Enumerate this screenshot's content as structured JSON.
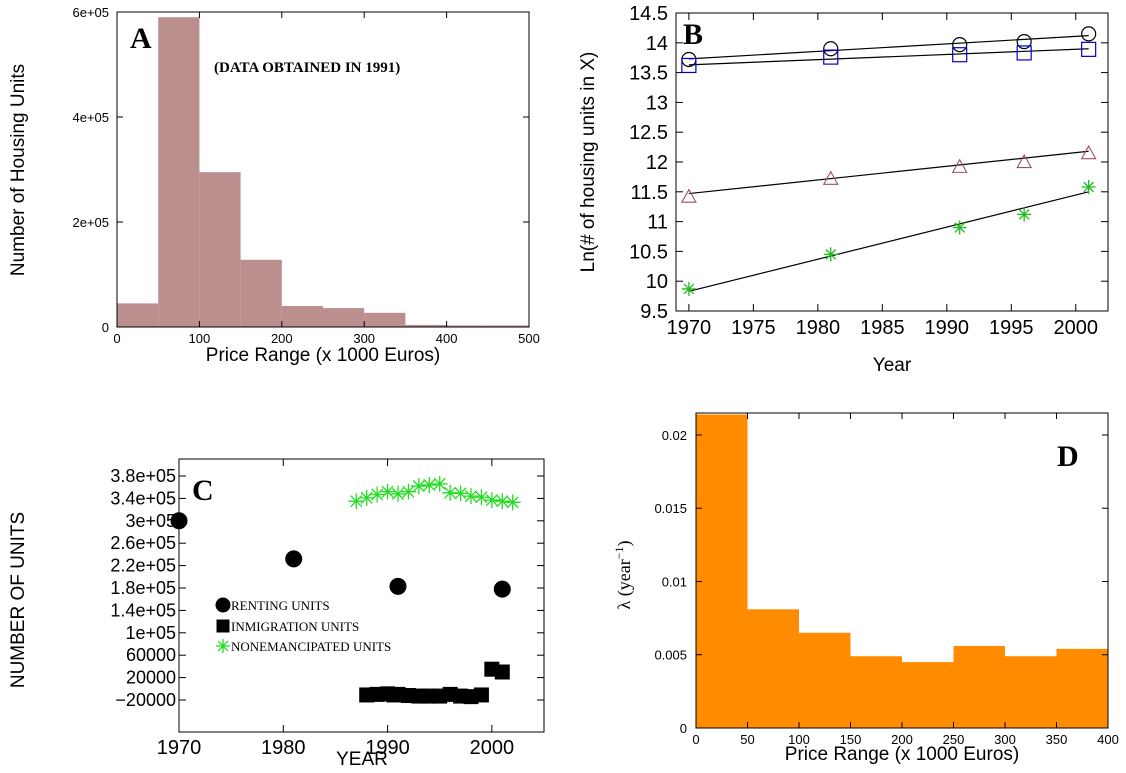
{
  "figure": {
    "panel_labels": [
      "A",
      "B",
      "C",
      "D"
    ]
  },
  "chart_data": [
    {
      "panel": "A",
      "type": "bar",
      "annotation": "(DATA OBTAINED IN 1991)",
      "xlabel": "Price Range (x 1000 Euros)",
      "ylabel": "Number of Housing Units",
      "xlim": [
        0,
        500
      ],
      "ylim": [
        0,
        600000
      ],
      "xticks": [
        "0",
        "100",
        "200",
        "300",
        "400",
        "500"
      ],
      "yticks": [
        "0",
        "2e+05",
        "4e+05",
        "6e+05"
      ],
      "bin_edges": [
        0,
        50,
        100,
        150,
        200,
        250,
        300,
        350,
        400,
        450,
        500
      ],
      "values": [
        45000,
        590000,
        295000,
        128000,
        40000,
        36000,
        27000,
        4000,
        3000,
        3000
      ],
      "color": "#bc8f8f"
    },
    {
      "panel": "B",
      "type": "scatter",
      "xlabel": "Year",
      "ylabel": "Ln(# of housing units in X)",
      "xlim": [
        1969,
        2002.5
      ],
      "ylim": [
        9.5,
        14.5
      ],
      "xticks": [
        "1970",
        "1975",
        "1980",
        "1985",
        "1990",
        "1995",
        "2000"
      ],
      "yticks": [
        "9.5",
        "10",
        "10.5",
        "11",
        "11.5",
        "12",
        "12.5",
        "13",
        "13.5",
        "14",
        "14.5"
      ],
      "series": [
        {
          "marker": "circle",
          "color": "#000000",
          "x": [
            1970,
            1981,
            1991,
            1996,
            2001
          ],
          "y": [
            13.72,
            13.9,
            13.97,
            14.02,
            14.15
          ],
          "fit": [
            [
              1970,
              13.73
            ],
            [
              2001,
              14.12
            ]
          ]
        },
        {
          "marker": "square",
          "color": "#0000cc",
          "x": [
            1970,
            1981,
            1991,
            1996,
            2001
          ],
          "y": [
            13.62,
            13.76,
            13.8,
            13.83,
            13.89
          ],
          "fit": [
            [
              1970,
              13.63
            ],
            [
              2001,
              13.9
            ]
          ]
        },
        {
          "marker": "triangle",
          "color": "#a0505a",
          "x": [
            1970,
            1981,
            1991,
            1996,
            2001
          ],
          "y": [
            11.42,
            11.72,
            11.92,
            12.0,
            12.15
          ],
          "fit": [
            [
              1970,
              11.47
            ],
            [
              2001,
              12.18
            ]
          ]
        },
        {
          "marker": "star",
          "color": "#22bb22",
          "x": [
            1970,
            1981,
            1991,
            1996,
            2001
          ],
          "y": [
            9.87,
            10.45,
            10.9,
            11.12,
            11.58
          ],
          "fit": [
            [
              1970,
              9.83
            ],
            [
              2001,
              11.5
            ]
          ]
        }
      ]
    },
    {
      "panel": "C",
      "type": "scatter",
      "xlabel": "YEAR",
      "ylabel": "NUMBER OF UNITS",
      "xlim": [
        1970,
        2005
      ],
      "ylim": [
        -20000,
        380000
      ],
      "xticks": [
        "1970",
        "1980",
        "1990",
        "2000"
      ],
      "yticks": [
        "-20000",
        "20000",
        "60000",
        "1e+05",
        "1.4e+05",
        "1.8e+05",
        "2.2e+05",
        "2.6e+05",
        "3e+05",
        "3.4e+05",
        "3.8e+05"
      ],
      "series": [
        {
          "name": "RENTING UNITS",
          "marker": "circle",
          "color": "#000000",
          "x": [
            1970,
            1981,
            1991,
            2001
          ],
          "y": [
            300000,
            232000,
            183000,
            178000
          ]
        },
        {
          "name": "INMIGRATION UNITS",
          "marker": "square",
          "color": "#000000",
          "x": [
            1988,
            1989,
            1990,
            1990.6,
            1991,
            1992,
            1993,
            1994,
            1995,
            1996,
            1997,
            1998,
            1999,
            2000,
            2001
          ],
          "y": [
            -11000,
            -10000,
            -9000,
            -11000,
            -10000,
            -12000,
            -13000,
            -13000,
            -13000,
            -10000,
            -13000,
            -14000,
            -11000,
            35000,
            30000
          ]
        },
        {
          "name": "NONEMANCIPATED UNITS",
          "marker": "star",
          "color": "#22dd22",
          "x": [
            1987,
            1988,
            1989,
            1990,
            1991,
            1992,
            1993,
            1994,
            1995,
            1996,
            1997,
            1998,
            1999,
            2000,
            2001,
            2002
          ],
          "y": [
            335000,
            341000,
            347000,
            352000,
            348000,
            352000,
            362000,
            364000,
            366000,
            350000,
            349000,
            344000,
            342000,
            337000,
            335000,
            333000
          ]
        }
      ]
    },
    {
      "panel": "D",
      "type": "bar",
      "xlabel": "Price Range (x 1000 Euros)",
      "ylabel": "λ (year",
      "ylabel_exponent": "−1",
      "ylabel_close": ")",
      "xlim": [
        0,
        400
      ],
      "ylim": [
        0,
        0.0215
      ],
      "xticks": [
        "0",
        "50",
        "100",
        "150",
        "200",
        "250",
        "300",
        "350",
        "400"
      ],
      "yticks": [
        "0",
        "0.005",
        "0.01",
        "0.015",
        "0.02"
      ],
      "bin_edges": [
        0,
        50,
        100,
        150,
        200,
        250,
        300,
        350,
        400
      ],
      "values": [
        0.0214,
        0.0081,
        0.0065,
        0.0049,
        0.0045,
        0.0056,
        0.0049,
        0.0054
      ],
      "color": "#ff8c00"
    }
  ]
}
